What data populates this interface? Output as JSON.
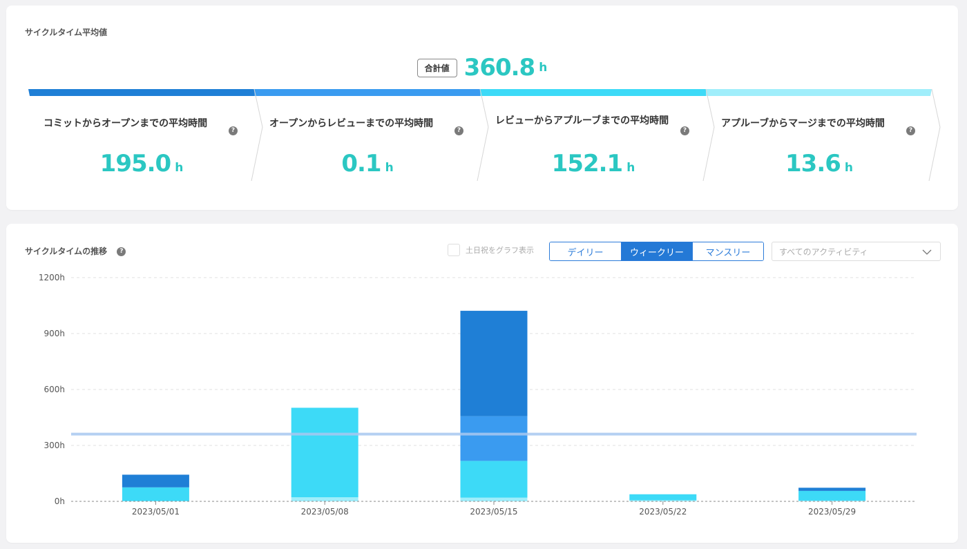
{
  "summary": {
    "title": "サイクルタイム平均値",
    "total_label": "合計値",
    "total_value": "360.8",
    "unit": "h",
    "help_glyph": "?",
    "stages": [
      {
        "label": "コミットからオープンまでの平均時間",
        "value": "195.0",
        "color": "#1f7fd6"
      },
      {
        "label": "オープンからレビューまでの平均時間",
        "value": "0.1",
        "color": "#3a9bf0"
      },
      {
        "label": "レビューからアプルーブまでの平均時間",
        "value": "152.1",
        "color": "#3ddaf7"
      },
      {
        "label": "アプルーブからマージまでの平均時間",
        "value": "13.6",
        "color": "#a0eefb"
      }
    ]
  },
  "trend": {
    "title": "サイクルタイムの推移",
    "weekend_label": "土日祝をグラフ表示",
    "periods": [
      "デイリー",
      "ウィークリー",
      "マンスリー"
    ],
    "active_period": "ウィークリー",
    "activity_placeholder": "すべてのアクティビティ"
  },
  "chart_data": {
    "type": "bar",
    "stacked": true,
    "categories": [
      "2023/05/01",
      "2023/05/08",
      "2023/05/15",
      "2023/05/22",
      "2023/05/29"
    ],
    "y_ticks": [
      "0h",
      "300h",
      "600h",
      "900h",
      "1200h"
    ],
    "ylim": [
      0,
      1200
    ],
    "grid": true,
    "average_line": 360.8,
    "average_line_color": "#a9c8f0",
    "series": [
      {
        "color": "#a0eefb",
        "values": [
          2,
          22,
          20,
          6,
          4
        ]
      },
      {
        "color": "#3ddaf7",
        "values": [
          73,
          480,
          197,
          32,
          52
        ]
      },
      {
        "color": "#3a9bf0",
        "values": [
          0,
          0,
          240,
          0,
          0
        ]
      },
      {
        "color": "#1f7fd6",
        "values": [
          68,
          0,
          565,
          0,
          17
        ]
      }
    ]
  }
}
